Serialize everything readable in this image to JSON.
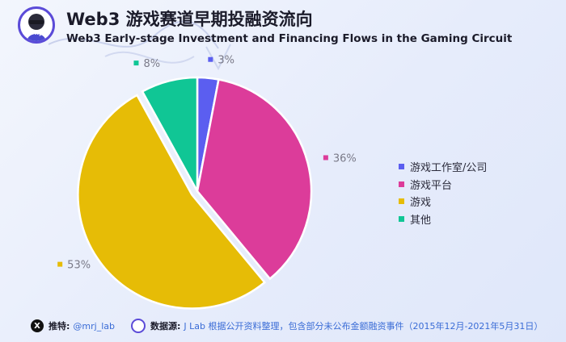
{
  "header": {
    "title": "Web3 游戏赛道早期投融资流向",
    "subtitle": "Web3 Early-stage Investment and Financing Flows in the Gaming Circuit"
  },
  "chart_data": {
    "type": "pie",
    "title": "Web3 游戏赛道早期投融资流向",
    "subtitle": "Web3 Early-stage Investment and Financing Flows in the Gaming Circuit",
    "categories": [
      "游戏工作室/公司",
      "游戏平台",
      "游戏",
      "其他"
    ],
    "values": [
      3,
      36,
      53,
      8
    ],
    "labels": [
      "3%",
      "36%",
      "53%",
      "8%"
    ],
    "colors": [
      "#5b5ef0",
      "#dc3c9a",
      "#e6bc06",
      "#10c695"
    ],
    "exploded": "游戏",
    "legend_position": "right"
  },
  "footer": {
    "x_icon": "X",
    "recommend_label": "推特:",
    "handle": "@mrj_lab",
    "source_label": "数据源:",
    "source_text": "J Lab 根据公开资料整理，包含部分未公布金额融资事件（2015年12月-2021年5月31日）"
  }
}
